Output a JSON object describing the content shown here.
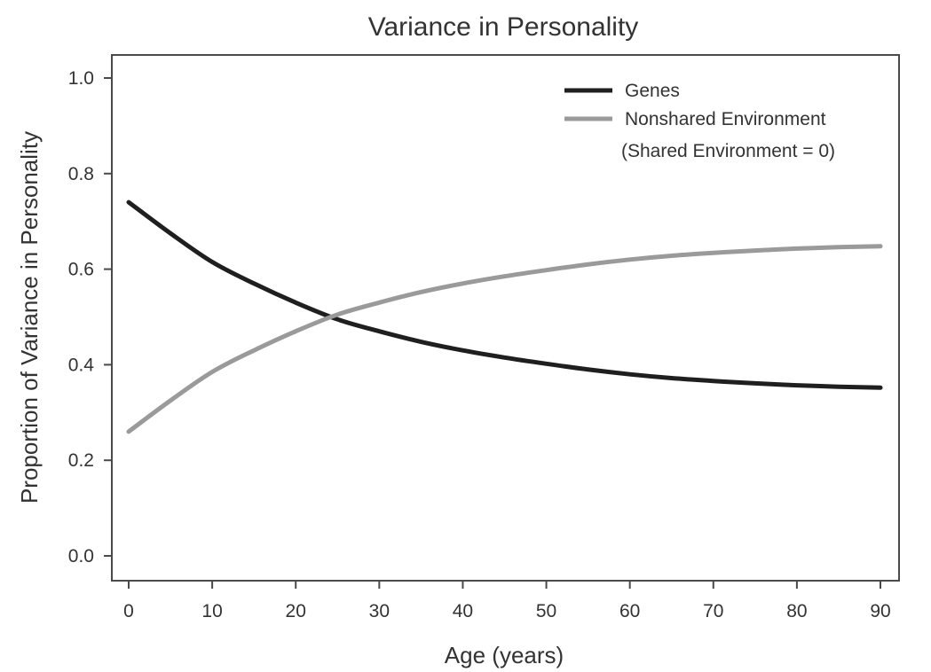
{
  "chart_data": {
    "type": "line",
    "title": "Variance in Personality",
    "xlabel": "Age (years)",
    "ylabel": "Proportion of Variance in Personality",
    "xlim": [
      0,
      90
    ],
    "ylim": [
      0,
      1.0
    ],
    "x_ticks": [
      "0",
      "10",
      "20",
      "30",
      "40",
      "50",
      "60",
      "70",
      "80",
      "90"
    ],
    "y_ticks": [
      "0.0",
      "0.2",
      "0.4",
      "0.6",
      "0.8",
      "1.0"
    ],
    "grid": false,
    "legend_position": "top-right",
    "legend_note": "(Shared Environment = 0)",
    "x": [
      0,
      5,
      10,
      15,
      20,
      25,
      30,
      35,
      40,
      45,
      50,
      55,
      60,
      65,
      70,
      75,
      80,
      85,
      90
    ],
    "series": [
      {
        "name": "Genes",
        "color": "#1f1f1f",
        "values": [
          0.74,
          0.675,
          0.615,
          0.57,
          0.53,
          0.495,
          0.47,
          0.448,
          0.43,
          0.415,
          0.402,
          0.39,
          0.38,
          0.372,
          0.366,
          0.361,
          0.357,
          0.354,
          0.352
        ]
      },
      {
        "name": "Nonshared Environment",
        "color": "#9a9a9a",
        "values": [
          0.26,
          0.325,
          0.385,
          0.43,
          0.47,
          0.505,
          0.53,
          0.552,
          0.57,
          0.585,
          0.598,
          0.61,
          0.62,
          0.628,
          0.634,
          0.639,
          0.643,
          0.646,
          0.648
        ]
      }
    ]
  }
}
